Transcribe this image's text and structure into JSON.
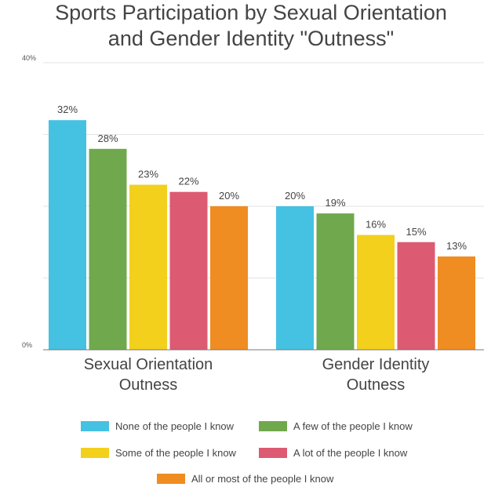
{
  "chart_data": {
    "type": "bar",
    "title": "Sports Participation by Sexual Orientation and Gender Identity \"Outness\"",
    "title_lines": [
      "Sports Participation by Sexual Orientation",
      "and Gender Identity \"Outness\""
    ],
    "categories": [
      "Sexual Orientation Outness",
      "Gender Identity Outness"
    ],
    "category_lines": [
      [
        "Sexual Orientation",
        "Outness"
      ],
      [
        "Gender Identity",
        "Outness"
      ]
    ],
    "series": [
      {
        "name": "None of the people I know",
        "values": [
          32,
          20
        ],
        "labels": [
          "32%",
          "20%"
        ],
        "color": "#45c1e2"
      },
      {
        "name": "A few of the people I know",
        "values": [
          28,
          19
        ],
        "labels": [
          "28%",
          "19%"
        ],
        "color": "#70a84d"
      },
      {
        "name": "Some of the people I know",
        "values": [
          23,
          16
        ],
        "labels": [
          "23%",
          "16%"
        ],
        "color": "#f2d01c"
      },
      {
        "name": "A lot of the people I know",
        "values": [
          22,
          15
        ],
        "labels": [
          "22%",
          "15%"
        ],
        "color": "#dc5a72"
      },
      {
        "name": "All or most of the people I know",
        "values": [
          20,
          13
        ],
        "labels": [
          "20%",
          "13%"
        ],
        "color": "#ef8c22"
      }
    ],
    "y_ticks": [
      0,
      40
    ],
    "y_tick_labels": [
      "0%",
      "40%"
    ],
    "ylim": [
      0,
      40
    ],
    "xlabel": "",
    "ylabel": "",
    "grid": true,
    "legend_position": "bottom"
  }
}
